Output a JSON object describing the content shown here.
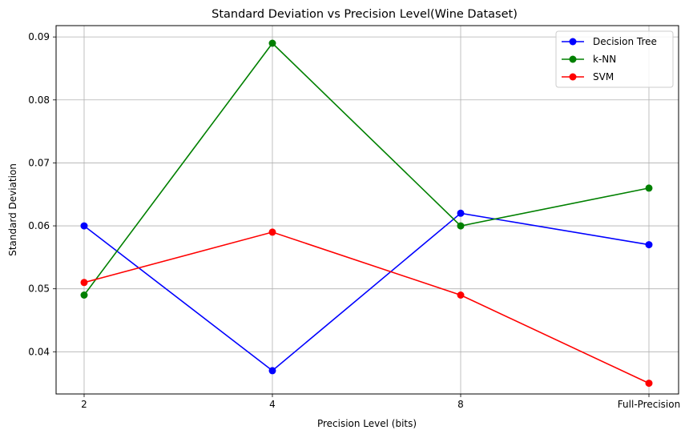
{
  "chart_data": {
    "type": "line",
    "title": "Standard Deviation vs Precision Level(Wine Dataset)",
    "xlabel": "Precision Level (bits)",
    "ylabel": "Standard Deviation",
    "categories": [
      "2",
      "4",
      "8",
      "Full-Precision"
    ],
    "ylim": [
      0.0333,
      0.0918
    ],
    "yticks": [
      "0.04",
      "0.05",
      "0.06",
      "0.07",
      "0.08",
      "0.09"
    ],
    "ytick_values": [
      0.04,
      0.05,
      0.06,
      0.07,
      0.08,
      0.09
    ],
    "grid": true,
    "legend_position": "top-right",
    "series": [
      {
        "name": "Decision Tree",
        "color": "#0000ff",
        "values": [
          0.06,
          0.037,
          0.062,
          0.057
        ]
      },
      {
        "name": "k-NN",
        "color": "#008000",
        "values": [
          0.049,
          0.089,
          0.06,
          0.066
        ]
      },
      {
        "name": "SVM",
        "color": "#ff0000",
        "values": [
          0.051,
          0.059,
          0.049,
          0.035
        ]
      }
    ]
  }
}
